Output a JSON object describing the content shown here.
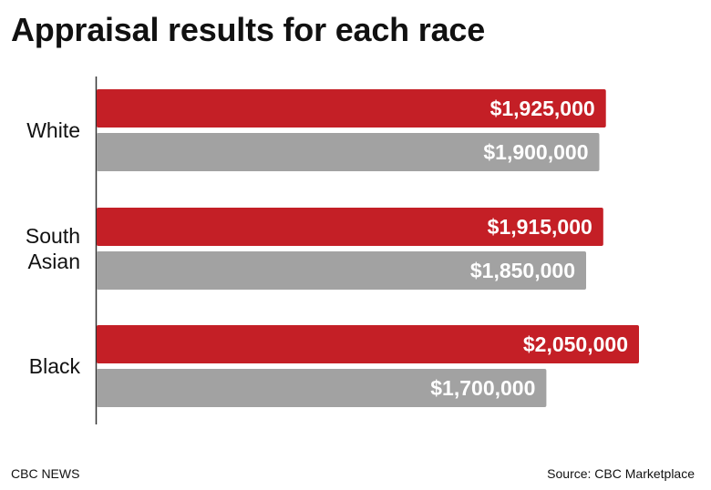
{
  "title": "Appraisal results for each race",
  "footer": {
    "left": "CBC NEWS",
    "right": "Source: CBC Marketplace"
  },
  "colors": {
    "primary_series": "#c41f26",
    "secondary_series": "#a2a2a2"
  },
  "chart_data": {
    "type": "bar",
    "orientation": "horizontal",
    "title": "Appraisal results for each race",
    "xlabel": "",
    "ylabel": "",
    "xlim": [
      0,
      2100000
    ],
    "grid": false,
    "legend": "none",
    "categories": [
      {
        "lines": [
          "White"
        ]
      },
      {
        "lines": [
          "South",
          "Asian"
        ]
      },
      {
        "lines": [
          "Black"
        ]
      }
    ],
    "series": [
      {
        "name": "series-1",
        "color": "#c41f26",
        "values": [
          1925000,
          1915000,
          2050000
        ],
        "labels": [
          "$1,925,000",
          "$1,915,000",
          "$2,050,000"
        ]
      },
      {
        "name": "series-2",
        "color": "#a2a2a2",
        "values": [
          1900000,
          1850000,
          1700000
        ],
        "labels": [
          "$1,900,000",
          "$1,850,000",
          "$1,700,000"
        ]
      }
    ]
  }
}
